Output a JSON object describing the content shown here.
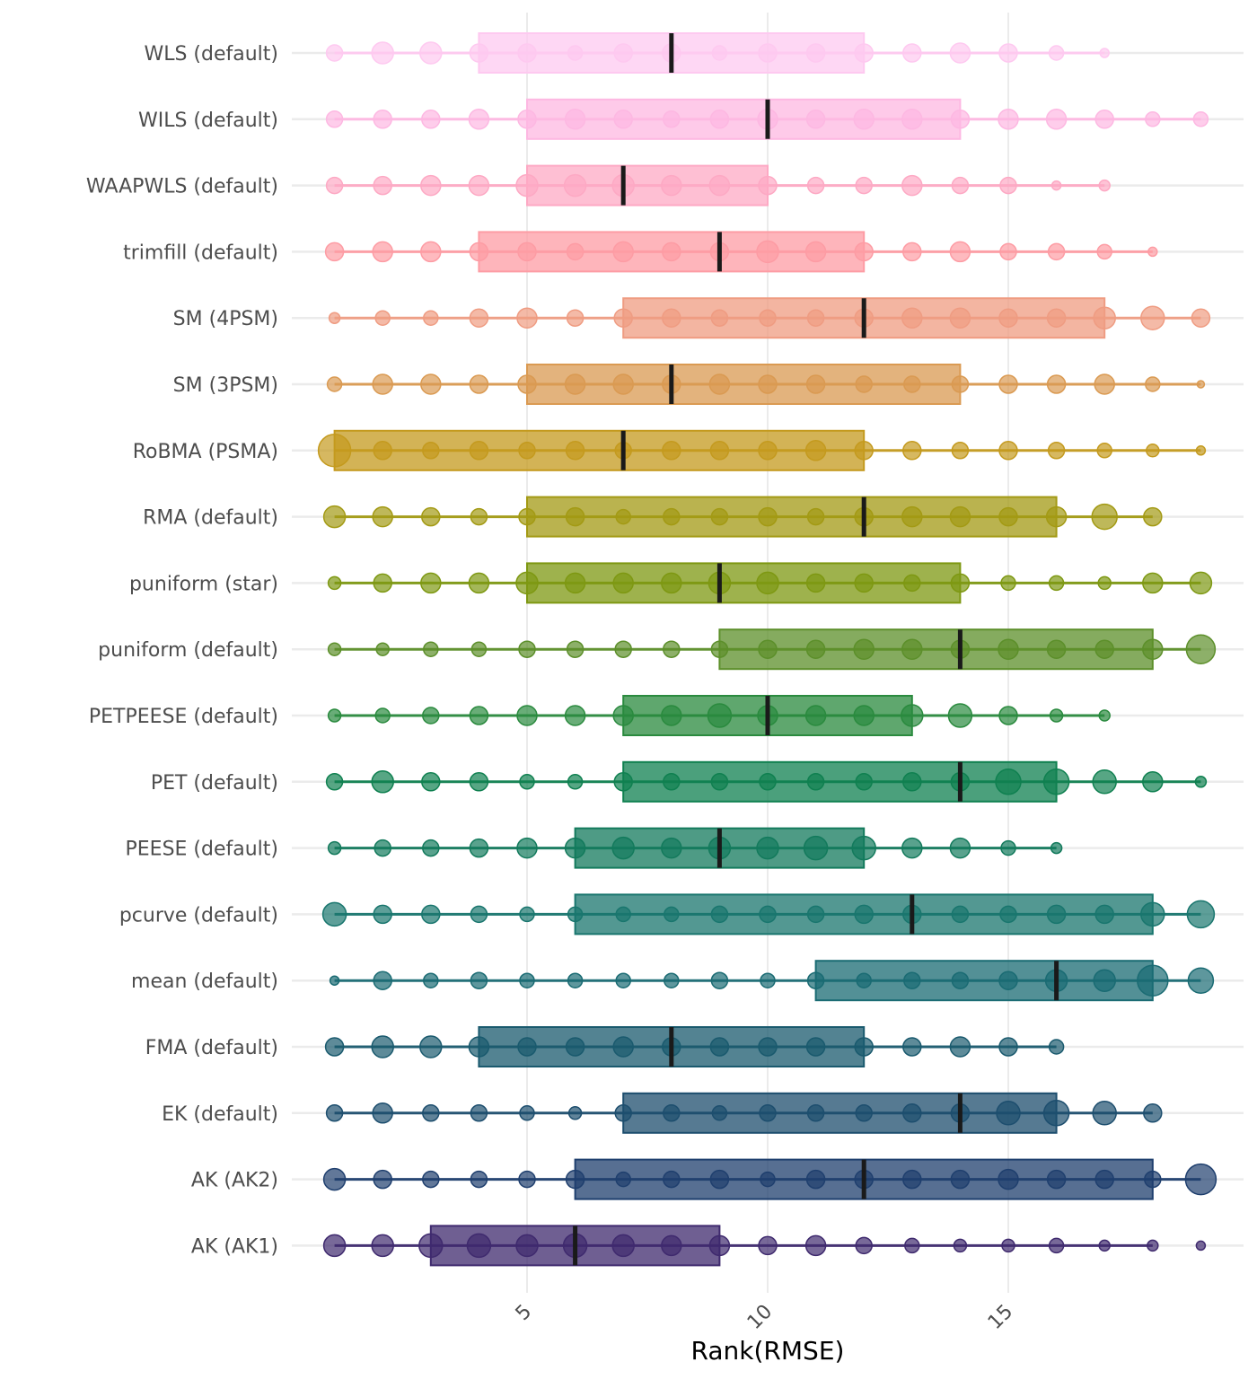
{
  "chart_data": {
    "type": "dot-box",
    "title": "",
    "xlabel": "Rank(RMSE)",
    "ylabel": "",
    "xlim": [
      0.5,
      19.5
    ],
    "xticks": [
      5,
      10,
      15
    ],
    "grid": true,
    "legend": "none",
    "size_meaning": "relative frequency of each rank (estimated)",
    "series": [
      {
        "name": "WLS (default)",
        "color": "#FEC9F0",
        "q1": 4,
        "median": 8,
        "q3": 12,
        "line": [
          1,
          17
        ],
        "ranks": [
          1,
          2,
          3,
          4,
          5,
          6,
          7,
          8,
          9,
          10,
          11,
          12,
          13,
          14,
          15,
          16,
          17
        ],
        "sizes": [
          9,
          12,
          12,
          10,
          10,
          8,
          10,
          10,
          8,
          10,
          10,
          10,
          10,
          11,
          10,
          8,
          5
        ]
      },
      {
        "name": "WILS (default)",
        "color": "#FDB8E2",
        "q1": 5,
        "median": 10,
        "q3": 14,
        "line": [
          1,
          19
        ],
        "ranks": [
          1,
          2,
          3,
          4,
          5,
          6,
          7,
          8,
          9,
          10,
          11,
          12,
          13,
          14,
          15,
          16,
          17,
          18,
          19
        ],
        "sizes": [
          9,
          10,
          10,
          11,
          10,
          11,
          10,
          9,
          10,
          11,
          10,
          11,
          11,
          10,
          11,
          11,
          10,
          8,
          8
        ]
      },
      {
        "name": "WAAPWLS (default)",
        "color": "#FDA9C4",
        "q1": 5,
        "median": 7,
        "q3": 10,
        "line": [
          1,
          17
        ],
        "ranks": [
          1,
          2,
          3,
          4,
          5,
          6,
          7,
          8,
          9,
          10,
          11,
          12,
          13,
          14,
          15,
          16,
          17
        ],
        "sizes": [
          9,
          10,
          11,
          11,
          12,
          12,
          12,
          11,
          11,
          10,
          9,
          9,
          11,
          9,
          9,
          5,
          6
        ]
      },
      {
        "name": "trimfill (default)",
        "color": "#FD9CA4",
        "q1": 4,
        "median": 9,
        "q3": 12,
        "line": [
          1,
          18
        ],
        "ranks": [
          1,
          2,
          3,
          4,
          5,
          6,
          7,
          8,
          9,
          10,
          11,
          12,
          13,
          14,
          15,
          16,
          17,
          18
        ],
        "sizes": [
          10,
          11,
          11,
          10,
          10,
          9,
          11,
          10,
          10,
          12,
          11,
          10,
          10,
          11,
          9,
          9,
          8,
          5
        ]
      },
      {
        "name": "SM (4PSM)",
        "color": "#EF9C82",
        "q1": 7,
        "median": 12,
        "q3": 17,
        "line": [
          1,
          19
        ],
        "ranks": [
          1,
          2,
          3,
          4,
          5,
          6,
          7,
          8,
          9,
          10,
          11,
          12,
          13,
          14,
          15,
          16,
          17,
          18,
          19
        ],
        "sizes": [
          6,
          8,
          8,
          10,
          11,
          9,
          10,
          10,
          9,
          9,
          9,
          10,
          11,
          11,
          10,
          10,
          12,
          13,
          10
        ]
      },
      {
        "name": "SM (3PSM)",
        "color": "#DA9A52",
        "q1": 5,
        "median": 8,
        "q3": 14,
        "line": [
          1,
          19
        ],
        "ranks": [
          1,
          2,
          3,
          4,
          5,
          6,
          7,
          8,
          9,
          10,
          11,
          12,
          13,
          14,
          15,
          16,
          17,
          18,
          19
        ],
        "sizes": [
          8,
          11,
          11,
          10,
          10,
          11,
          11,
          10,
          11,
          10,
          10,
          9,
          9,
          9,
          10,
          10,
          11,
          8,
          4
        ]
      },
      {
        "name": "RoBMA (PSMA)",
        "color": "#C49A1E",
        "q1": 1,
        "median": 7,
        "q3": 12,
        "line": [
          1,
          19
        ],
        "ranks": [
          1,
          2,
          3,
          4,
          5,
          6,
          7,
          8,
          9,
          10,
          11,
          12,
          13,
          14,
          15,
          16,
          17,
          18,
          19
        ],
        "sizes": [
          18,
          10,
          9,
          10,
          9,
          10,
          9,
          10,
          10,
          10,
          11,
          10,
          10,
          9,
          10,
          9,
          8,
          7,
          5
        ]
      },
      {
        "name": "RMA (default)",
        "color": "#A39A14",
        "q1": 5,
        "median": 12,
        "q3": 16,
        "line": [
          1,
          18
        ],
        "ranks": [
          1,
          2,
          3,
          4,
          5,
          6,
          7,
          8,
          9,
          10,
          11,
          12,
          13,
          14,
          15,
          16,
          17,
          18
        ],
        "sizes": [
          12,
          11,
          10,
          9,
          9,
          10,
          8,
          9,
          9,
          10,
          9,
          10,
          11,
          11,
          10,
          11,
          14,
          10
        ]
      },
      {
        "name": "puniform (star)",
        "color": "#7E9812",
        "q1": 5,
        "median": 9,
        "q3": 14,
        "line": [
          1,
          19
        ],
        "ranks": [
          1,
          2,
          3,
          4,
          5,
          6,
          7,
          8,
          9,
          10,
          11,
          12,
          13,
          14,
          15,
          16,
          17,
          18,
          19
        ],
        "sizes": [
          7,
          10,
          11,
          11,
          12,
          11,
          11,
          11,
          12,
          12,
          10,
          10,
          9,
          10,
          8,
          8,
          7,
          11,
          12
        ]
      },
      {
        "name": "puniform (default)",
        "color": "#5C8F2A",
        "q1": 9,
        "median": 14,
        "q3": 18,
        "line": [
          1,
          19
        ],
        "ranks": [
          1,
          2,
          3,
          4,
          5,
          6,
          7,
          8,
          9,
          10,
          11,
          12,
          13,
          14,
          15,
          16,
          17,
          18,
          19
        ],
        "sizes": [
          7,
          7,
          8,
          8,
          9,
          9,
          9,
          9,
          9,
          10,
          10,
          11,
          11,
          10,
          11,
          10,
          10,
          11,
          16
        ]
      },
      {
        "name": "PETPEESE (default)",
        "color": "#2A8A3E",
        "q1": 7,
        "median": 10,
        "q3": 13,
        "line": [
          1,
          17
        ],
        "ranks": [
          1,
          2,
          3,
          4,
          5,
          6,
          7,
          8,
          9,
          10,
          11,
          12,
          13,
          14,
          15,
          16,
          17
        ],
        "sizes": [
          7,
          8,
          9,
          10,
          11,
          11,
          11,
          11,
          13,
          11,
          11,
          11,
          12,
          13,
          10,
          7,
          6
        ]
      },
      {
        "name": "PET (default)",
        "color": "#0F8050",
        "q1": 7,
        "median": 14,
        "q3": 16,
        "line": [
          1,
          19
        ],
        "ranks": [
          1,
          2,
          3,
          4,
          5,
          6,
          7,
          8,
          9,
          10,
          11,
          12,
          13,
          14,
          15,
          16,
          17,
          18,
          19
        ],
        "sizes": [
          9,
          12,
          10,
          10,
          8,
          8,
          10,
          9,
          9,
          9,
          9,
          9,
          10,
          10,
          14,
          14,
          13,
          11,
          6
        ]
      },
      {
        "name": "PEESE (default)",
        "color": "#137A5C",
        "q1": 6,
        "median": 9,
        "q3": 12,
        "line": [
          1,
          16
        ],
        "ranks": [
          1,
          2,
          3,
          4,
          5,
          6,
          7,
          8,
          9,
          10,
          11,
          12,
          13,
          14,
          15,
          16
        ],
        "sizes": [
          7,
          9,
          9,
          10,
          11,
          11,
          12,
          11,
          12,
          12,
          13,
          13,
          11,
          11,
          8,
          6
        ]
      },
      {
        "name": "pcurve (default)",
        "color": "#19766E",
        "q1": 6,
        "median": 13,
        "q3": 18,
        "line": [
          1,
          19
        ],
        "ranks": [
          1,
          2,
          3,
          4,
          5,
          6,
          7,
          8,
          9,
          10,
          11,
          12,
          13,
          14,
          15,
          16,
          17,
          18,
          19
        ],
        "sizes": [
          13,
          10,
          10,
          9,
          8,
          8,
          8,
          8,
          9,
          9,
          9,
          10,
          10,
          9,
          9,
          10,
          10,
          13,
          15
        ]
      },
      {
        "name": "mean (default)",
        "color": "#1A6B73",
        "q1": 11,
        "median": 16,
        "q3": 18,
        "line": [
          1,
          19
        ],
        "ranks": [
          1,
          2,
          3,
          4,
          5,
          6,
          7,
          8,
          9,
          10,
          11,
          12,
          13,
          14,
          15,
          16,
          17,
          18,
          19
        ],
        "sizes": [
          5,
          10,
          8,
          9,
          8,
          8,
          8,
          8,
          9,
          8,
          9,
          8,
          9,
          9,
          10,
          12,
          12,
          17,
          14
        ]
      },
      {
        "name": "FMA (default)",
        "color": "#1A5A6E",
        "q1": 4,
        "median": 8,
        "q3": 12,
        "line": [
          1,
          16
        ],
        "ranks": [
          1,
          2,
          3,
          4,
          5,
          6,
          7,
          8,
          9,
          10,
          11,
          12,
          13,
          14,
          15,
          16
        ],
        "sizes": [
          10,
          12,
          12,
          11,
          10,
          10,
          11,
          10,
          10,
          10,
          10,
          10,
          10,
          11,
          10,
          8
        ]
      },
      {
        "name": "EK (default)",
        "color": "#1D4E6E",
        "q1": 7,
        "median": 14,
        "q3": 16,
        "line": [
          1,
          18
        ],
        "ranks": [
          1,
          2,
          3,
          4,
          5,
          6,
          7,
          8,
          9,
          10,
          11,
          12,
          13,
          14,
          15,
          16,
          17,
          18
        ],
        "sizes": [
          9,
          11,
          9,
          9,
          8,
          7,
          9,
          9,
          8,
          9,
          9,
          9,
          10,
          10,
          13,
          14,
          13,
          10
        ]
      },
      {
        "name": "AK (AK2)",
        "color": "#1F3F6E",
        "q1": 6,
        "median": 12,
        "q3": 18,
        "line": [
          1,
          19
        ],
        "ranks": [
          1,
          2,
          3,
          4,
          5,
          6,
          7,
          8,
          9,
          10,
          11,
          12,
          13,
          14,
          15,
          16,
          17,
          18,
          19
        ],
        "sizes": [
          12,
          10,
          9,
          9,
          9,
          10,
          8,
          9,
          10,
          8,
          10,
          10,
          10,
          10,
          11,
          10,
          10,
          9,
          17
        ]
      },
      {
        "name": "AK (AK1)",
        "color": "#3F2A6E",
        "q1": 3,
        "median": 6,
        "q3": 9,
        "line": [
          1,
          18
        ],
        "ranks": [
          1,
          2,
          3,
          4,
          5,
          6,
          7,
          8,
          9,
          10,
          11,
          12,
          13,
          14,
          15,
          16,
          17,
          18,
          19
        ],
        "sizes": [
          12,
          12,
          13,
          13,
          12,
          13,
          12,
          11,
          11,
          10,
          11,
          9,
          8,
          7,
          7,
          8,
          6,
          6,
          5
        ]
      }
    ]
  }
}
